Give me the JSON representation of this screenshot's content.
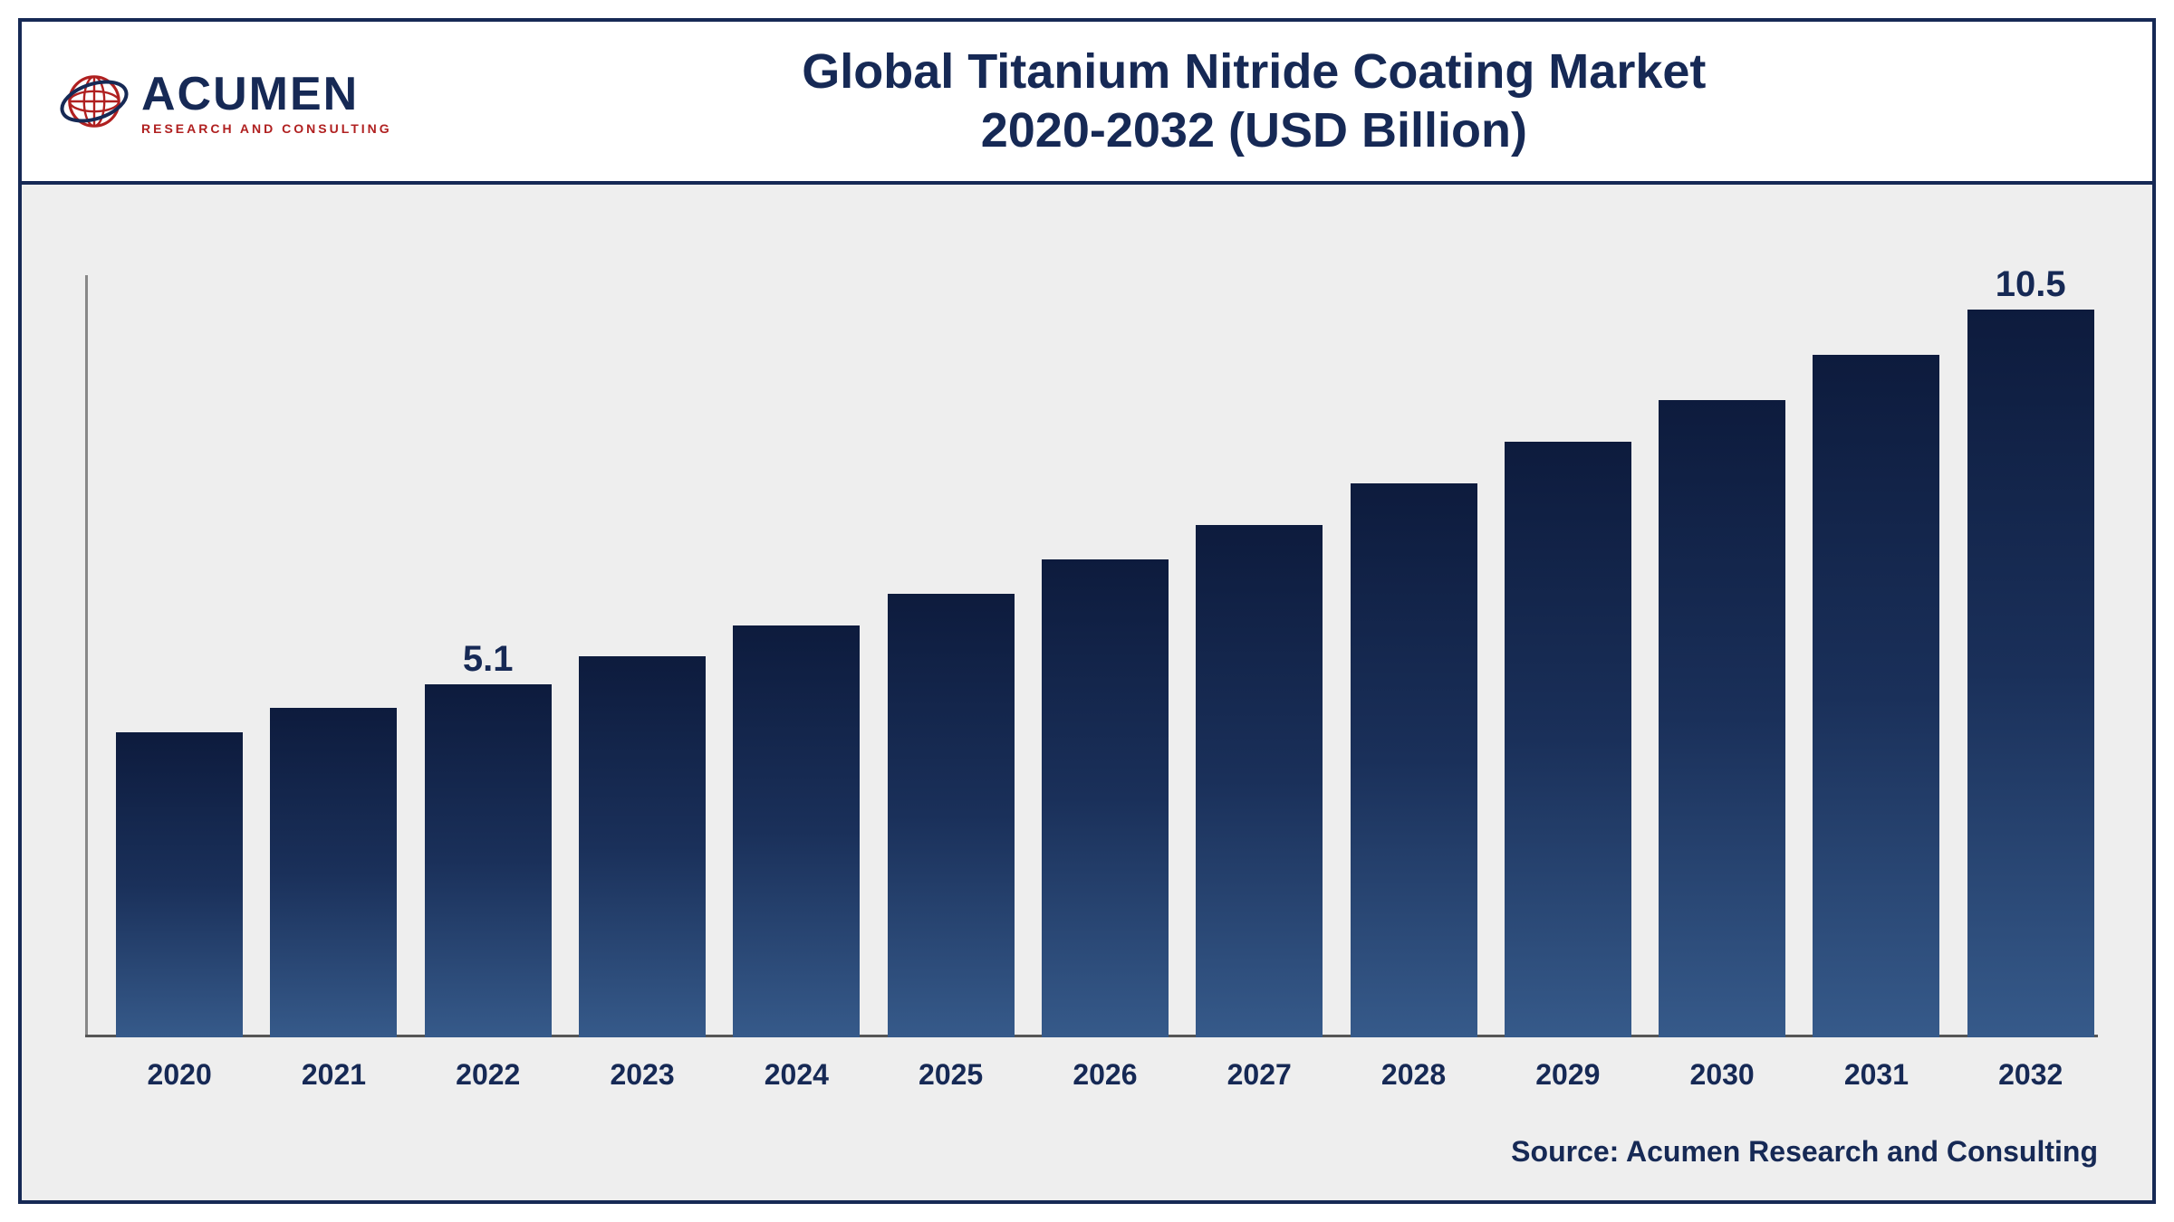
{
  "logo": {
    "name": "ACUMEN",
    "tagline": "RESEARCH AND CONSULTING",
    "globe_color": "#b02020",
    "ring_color": "#162955"
  },
  "title": {
    "line1": "Global Titanium Nitride Coating Market",
    "line2": "2020-2032 (USD Billion)",
    "color": "#162955",
    "fontsize": 54
  },
  "chart": {
    "type": "bar",
    "categories": [
      "2020",
      "2021",
      "2022",
      "2023",
      "2024",
      "2025",
      "2026",
      "2027",
      "2028",
      "2029",
      "2030",
      "2031",
      "2032"
    ],
    "values": [
      4.4,
      4.75,
      5.1,
      5.5,
      5.95,
      6.4,
      6.9,
      7.4,
      8.0,
      8.6,
      9.2,
      9.85,
      10.5
    ],
    "value_labels": {
      "2": "5.1",
      "12": "10.5"
    },
    "max_value": 11.0,
    "bar_gradient_top": "#0d1b3d",
    "bar_gradient_mid": "#1a305a",
    "bar_gradient_bottom": "#365a8a",
    "axis_color": "#555555",
    "x_label_color": "#162955",
    "x_label_fontsize": 32,
    "value_label_color": "#162955",
    "value_label_fontsize": 40,
    "background_color": "#eeeeee"
  },
  "source": {
    "text": "Source: Acumen Research and Consulting",
    "color": "#162955",
    "fontsize": 32
  },
  "frame": {
    "border_color": "#162955",
    "border_width": 4
  }
}
